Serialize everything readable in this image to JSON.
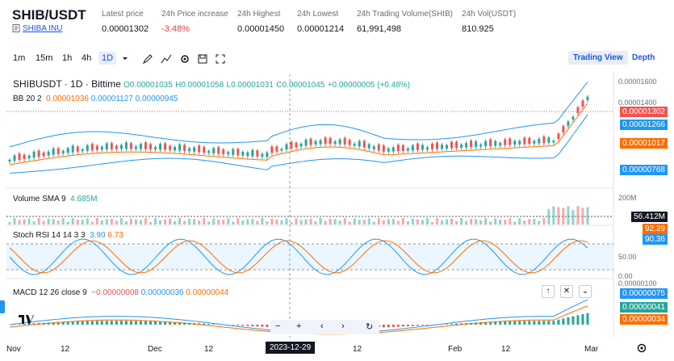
{
  "header": {
    "pair": "SHIB/USDT",
    "name": "SHIBA INU",
    "stats": [
      {
        "label": "Latest price",
        "value": "0.00001302"
      },
      {
        "label": "24h Price increase",
        "value": "-3.48%"
      },
      {
        "label": "24h Highest",
        "value": "0.00001450"
      },
      {
        "label": "24h Lowest",
        "value": "0.00001214"
      },
      {
        "label": "24h Trading Volume(SHIB)",
        "value": "61,991,498"
      },
      {
        "label": "24h Vol(USDT)",
        "value": "810.925"
      }
    ]
  },
  "toolbar": {
    "intervals": [
      "1m",
      "15m",
      "1h",
      "4h",
      "1D"
    ],
    "active_interval": "1D",
    "tabs": [
      "Trading View",
      "Depth"
    ]
  },
  "chart": {
    "symbol_line": "SHIBUSDT · 1D · Bittime",
    "ohlc": {
      "o": "O0.00001035",
      "h": "H0.00001058",
      "l": "L0.00001031",
      "c": "C0.00001045",
      "chg": "+0.00000005 (+0.48%)"
    },
    "bb": {
      "label": "BB 20 2",
      "v1": "0.00001036",
      "v2": "0.00001127",
      "v3": "0.00000945"
    },
    "volume": {
      "label": "Volume SMA 9",
      "value": "4.685M"
    },
    "stoch": {
      "label": "Stoch RSI 14 14 3 3",
      "k": "3.90",
      "d": "6.73"
    },
    "macd": {
      "label": "MACD 12 26 close 9",
      "v1": "−0.00000008",
      "v2": "0.00000036",
      "v3": "0.00000044"
    },
    "price_axis": [
      "0.00001600",
      "0.00001400",
      "0.00001302",
      "0.00001266",
      "0.00001017",
      "0.00000768"
    ],
    "vol_axis": [
      "200M",
      "56.412M"
    ],
    "stoch_axis": [
      "92.29",
      "90.36",
      "50.00",
      "0.00"
    ],
    "macd_axis": [
      "0.00000100",
      "0.00000075",
      "0.00000041",
      "0.00000034"
    ],
    "x_axis": [
      "Nov",
      "12",
      "Dec",
      "12",
      "2023-12-29",
      "12",
      "Feb",
      "12",
      "Mar"
    ]
  },
  "colors": {
    "up": "#26a69a",
    "down": "#ef5350",
    "accent": "#1e53e5",
    "bb_band": "#2196f3",
    "bb_mid": "#ff6d00"
  }
}
